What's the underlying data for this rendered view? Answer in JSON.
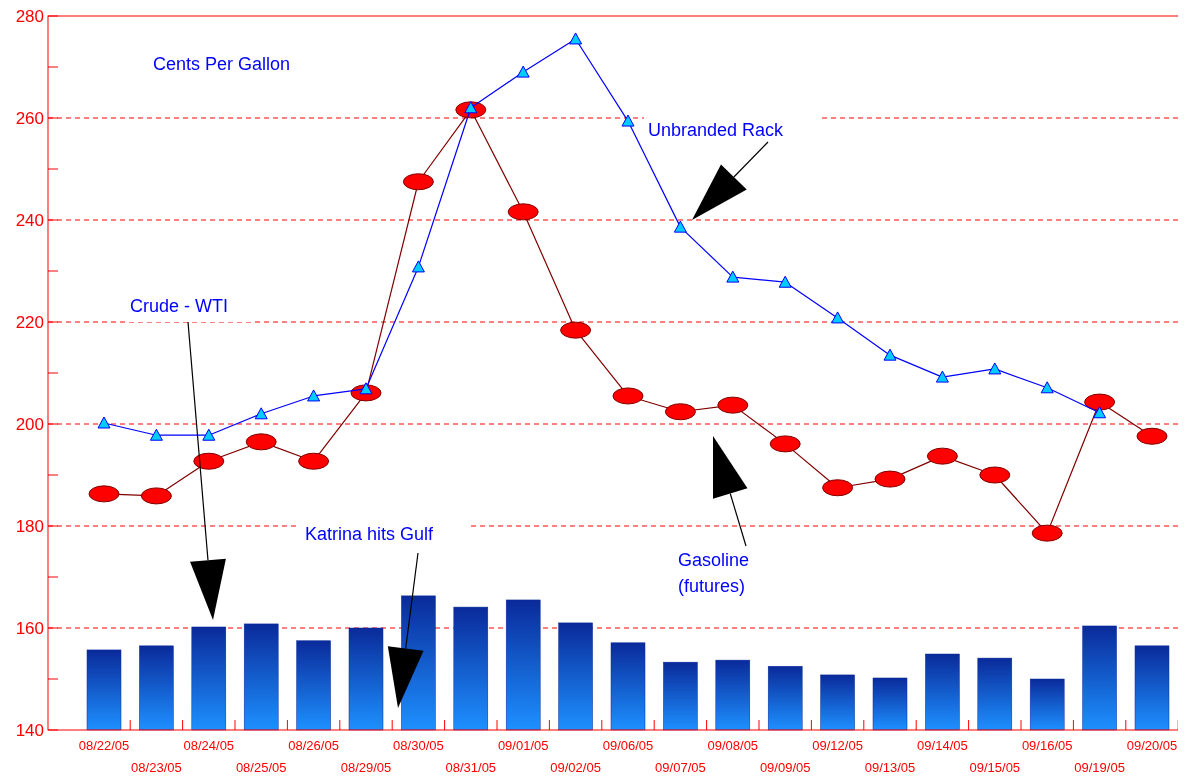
{
  "chart_data": {
    "type": "bar",
    "ylabel": "Cents Per Gallon",
    "categories": [
      "08/22/05",
      "08/23/05",
      "08/24/05",
      "08/25/05",
      "08/26/05",
      "08/29/05",
      "08/30/05",
      "08/31/05",
      "09/01/05",
      "09/02/05",
      "09/06/05",
      "09/07/05",
      "09/08/05",
      "09/09/05",
      "09/12/05",
      "09/13/05",
      "09/14/05",
      "09/15/05",
      "09/16/05",
      "09/19/05",
      "09/20/05"
    ],
    "series": [
      {
        "name": "Crude - WTI",
        "color": "#0a2a9a",
        "values": [
          155.7,
          156.5,
          160.2,
          160.8,
          157.5,
          160,
          166.3,
          164.1,
          165.5,
          161,
          157.1,
          153.3,
          153.7,
          152.5,
          150.8,
          150.2,
          154.9,
          154.1,
          150,
          160.4,
          156.5
        ]
      },
      {
        "name": "Unbranded Rack",
        "type": "line",
        "color": "#0000ff",
        "marker": "triangle",
        "values": [
          200.2,
          197.8,
          197.8,
          202,
          205.5,
          206.9,
          230.8,
          262,
          269,
          275.5,
          259.4,
          238.6,
          228.8,
          227.8,
          220.8,
          213.5,
          209.2,
          210.8,
          207.1,
          202.2,
          null
        ]
      },
      {
        "name": "Gasoline (futures)",
        "type": "line",
        "color": "#800000",
        "marker": "circle",
        "values": [
          186.3,
          185.9,
          192.7,
          196.5,
          192.7,
          206.1,
          247.5,
          261.6,
          241.6,
          218.4,
          205.5,
          202.4,
          203.7,
          196.1,
          187.5,
          189.2,
          193.7,
          190,
          178.6,
          204.3,
          197.6
        ]
      }
    ],
    "ylim": [
      140,
      280
    ],
    "yticks": [
      140,
      {
        "value": 150,
        "label": null
      },
      160,
      {
        "value": 170,
        "label": null
      },
      180,
      {
        "value": 190,
        "label": null
      },
      200,
      {
        "value": 210,
        "label": null
      },
      220,
      {
        "value": 230,
        "label": null
      },
      240,
      {
        "value": 250,
        "label": null
      },
      260,
      {
        "value": 270,
        "label": null
      },
      280
    ],
    "grid": "y",
    "legend": false,
    "annotations": [
      "Katrina hits Gulf"
    ]
  }
}
